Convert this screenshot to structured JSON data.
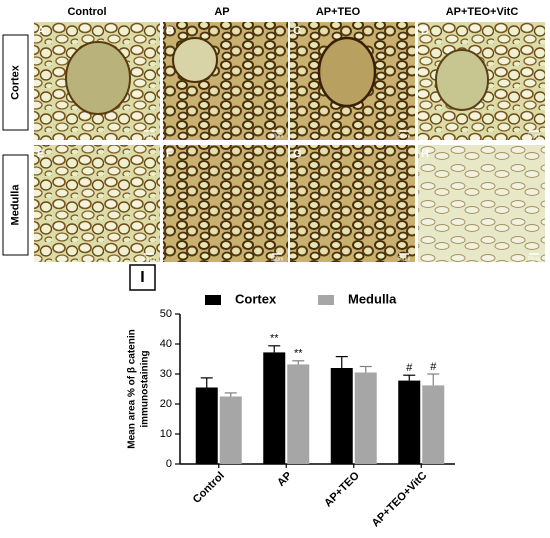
{
  "figure": {
    "column_headers": [
      "Control",
      "AP",
      "AP+TEO",
      "AP+TEO+VitC"
    ],
    "row_labels": [
      "Cortex",
      "Medulla"
    ],
    "panel_letters": [
      "A",
      "B",
      "C",
      "D",
      "E",
      "F",
      "G",
      "H"
    ],
    "scale_bar_label": "50µm",
    "chart_label": "I"
  },
  "chart_data": {
    "type": "bar",
    "ylabel": [
      "Mean area % of β catenin",
      "immunostaining"
    ],
    "categories": [
      "Control",
      "AP",
      "AP+TEO",
      "AP+TEO+VitC"
    ],
    "series": [
      {
        "name": "Cortex",
        "color": "#000000",
        "values": [
          25.5,
          37.2,
          32,
          27.8
        ],
        "errors": [
          3.2,
          2.2,
          3.8,
          1.8
        ],
        "significance": [
          null,
          "**",
          null,
          "#"
        ]
      },
      {
        "name": "Medulla",
        "color": "#a6a6a6",
        "values": [
          22.5,
          33.2,
          30.5,
          26.2
        ],
        "errors": [
          1.2,
          1.2,
          2,
          3.8
        ],
        "significance": [
          null,
          "**",
          null,
          "#"
        ]
      }
    ],
    "ylim": [
      0,
      50
    ],
    "yticks": [
      0,
      10,
      20,
      30,
      40,
      50
    ]
  }
}
